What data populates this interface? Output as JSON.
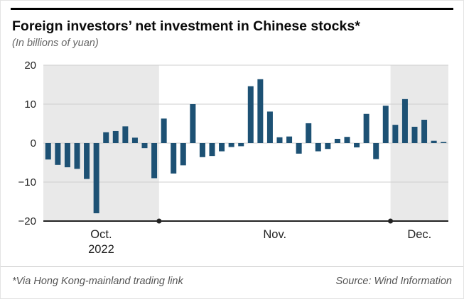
{
  "card": {
    "title": "Foreign investors’ net investment in Chinese stocks*",
    "subtitle": "(In billions of yuan)",
    "footnote": "*Via Hong Kong-mainland trading link",
    "source": "Source: Wind Information"
  },
  "chart_data": {
    "type": "bar",
    "title": "Foreign investors’ net investment in Chinese stocks",
    "ylabel": "billions of yuan",
    "ylim": [
      -20,
      20
    ],
    "yticks": [
      20,
      10,
      0,
      -10,
      -20
    ],
    "grid": true,
    "bar_color": "#1d5174",
    "shade_color": "#e9e9e9",
    "axis_color": "#222222",
    "gridline_color": "#cfcfcf",
    "groups": [
      {
        "label": "Oct.",
        "sublabel": "2022",
        "shaded": true,
        "values": [
          -4.2,
          -5.6,
          -6.2,
          -6.6,
          -9.2,
          -18,
          2.8,
          3.1,
          4.3,
          1.4,
          -1.3,
          -9
        ]
      },
      {
        "label": "Nov.",
        "sublabel": "",
        "shaded": false,
        "values": [
          6.3,
          -7.8,
          -5.7,
          10,
          -3.6,
          -3.3,
          -2.1,
          -1,
          -0.8,
          14.6,
          16.4,
          8.1,
          1.5,
          1.7,
          -2.7,
          5.1,
          -2.1,
          -1.5,
          1.1,
          1.6,
          -1.1,
          7.5,
          -4.1,
          9.6
        ]
      },
      {
        "label": "Dec.",
        "sublabel": "",
        "shaded": true,
        "values": [
          4.7,
          11.3,
          4.2,
          6,
          0.6,
          0.3
        ]
      }
    ]
  }
}
